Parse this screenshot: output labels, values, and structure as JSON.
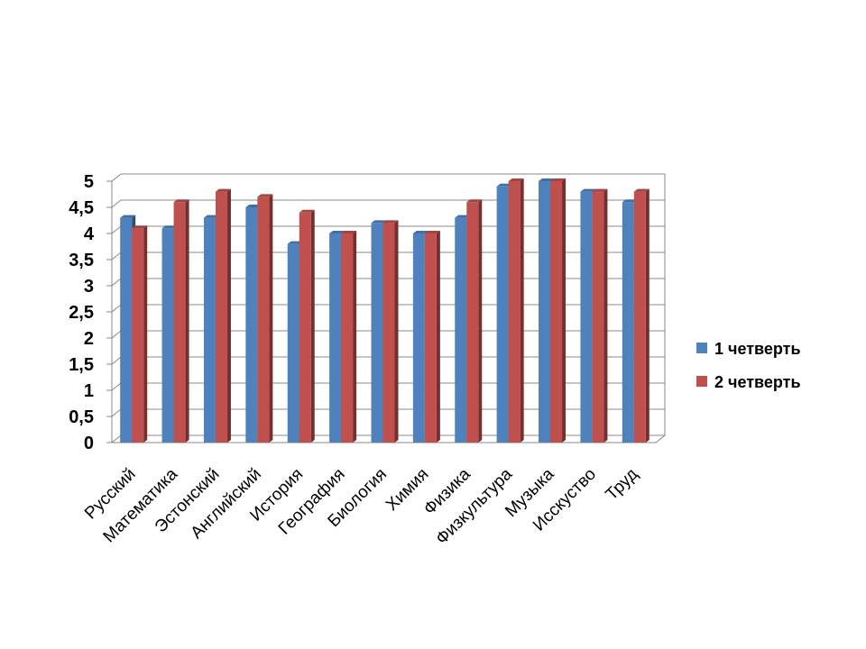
{
  "chart_data": {
    "type": "bar",
    "categories": [
      "Русский",
      "Математика",
      "Эстонский",
      "Английский",
      "История",
      "География",
      "Биология",
      "Химия",
      "Физика",
      "Физкультура",
      "Музыка",
      "Исскуство",
      "Труд"
    ],
    "series": [
      {
        "name": "1 четверть",
        "color": "#4f81bd",
        "values": [
          4.3,
          4.1,
          4.3,
          4.5,
          3.8,
          4.0,
          4.2,
          4.0,
          4.3,
          4.9,
          5.0,
          4.8,
          4.6
        ]
      },
      {
        "name": "2 четверть",
        "color": "#c0504d",
        "values": [
          4.1,
          4.6,
          4.8,
          4.7,
          4.4,
          4.0,
          4.2,
          4.0,
          4.6,
          5.0,
          5.0,
          4.8,
          4.8
        ]
      }
    ],
    "ytick_labels": [
      "0",
      "0,5",
      "1",
      "1,5",
      "2",
      "2,5",
      "3",
      "3,5",
      "4",
      "4,5",
      "5"
    ],
    "ylim": [
      0,
      5
    ],
    "grid": true,
    "style": "3d-clustered-column",
    "legend_position": "right"
  }
}
